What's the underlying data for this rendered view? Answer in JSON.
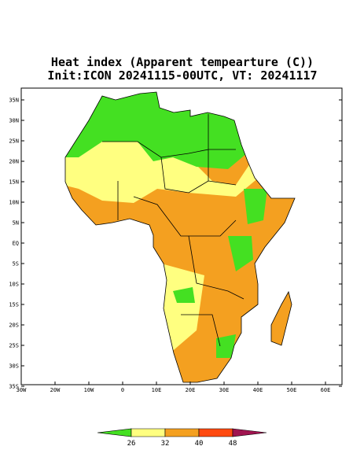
{
  "map": {
    "title": "Heat index (Apparent tempearture (C))",
    "subtitle": "Init:ICON 20241115-00UTC, VT: 20241117",
    "lat_labels": [
      "35N",
      "30N",
      "25N",
      "20N",
      "15N",
      "10N",
      "5N",
      "EQ",
      "5S",
      "10S",
      "15S",
      "20S",
      "25S",
      "30S",
      "35S"
    ],
    "lon_labels": [
      "30W",
      "20W",
      "10W",
      "0",
      "10E",
      "20E",
      "30E",
      "40E",
      "50E",
      "60E"
    ],
    "colorbar": {
      "labels": [
        26,
        32,
        40,
        48
      ],
      "colors": [
        "#44e022",
        "#ffff80",
        "#f4a020",
        "#ff4a10",
        "#a01450"
      ]
    }
  }
}
